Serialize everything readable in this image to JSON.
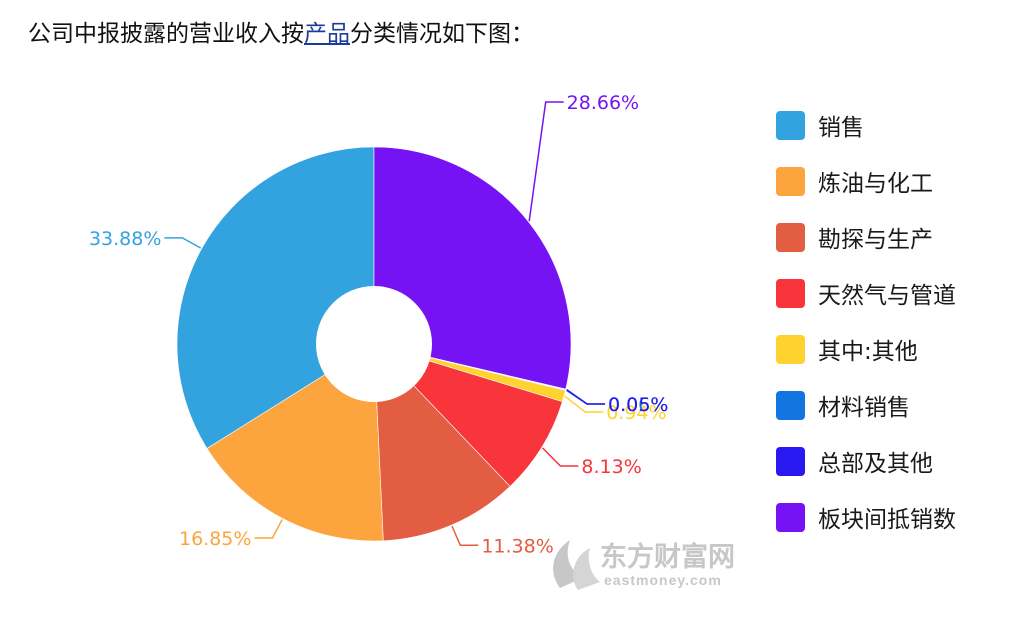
{
  "heading": {
    "prefix": "公司中报披露的营业收入按",
    "link": "产品",
    "suffix": "分类情况如下图："
  },
  "watermark": {
    "brand": "东方财富网",
    "domain": "eastmoney.com"
  },
  "chart_data": {
    "type": "pie",
    "donut": true,
    "legend_position": "right",
    "categories": [
      "销售",
      "炼油与化工",
      "勘探与生产",
      "天然气与管道",
      "其中:其他",
      "材料销售",
      "总部及其他",
      "板块间抵销数"
    ],
    "values": [
      33.88,
      16.85,
      11.38,
      8.13,
      0.94,
      0.06,
      0.05,
      28.66
    ],
    "labels": [
      "33.88%",
      "16.85%",
      "11.38%",
      "8.13%",
      "0.94%",
      "0.06%",
      "0.05%",
      "28.66%"
    ],
    "colors": [
      "#33a3e0",
      "#fca53f",
      "#e35d42",
      "#f8353a",
      "#fed22f",
      "#1376e0",
      "#2a18f0",
      "#7513f5"
    ],
    "start": "12 o'clock",
    "direction": "counter-clockwise"
  }
}
